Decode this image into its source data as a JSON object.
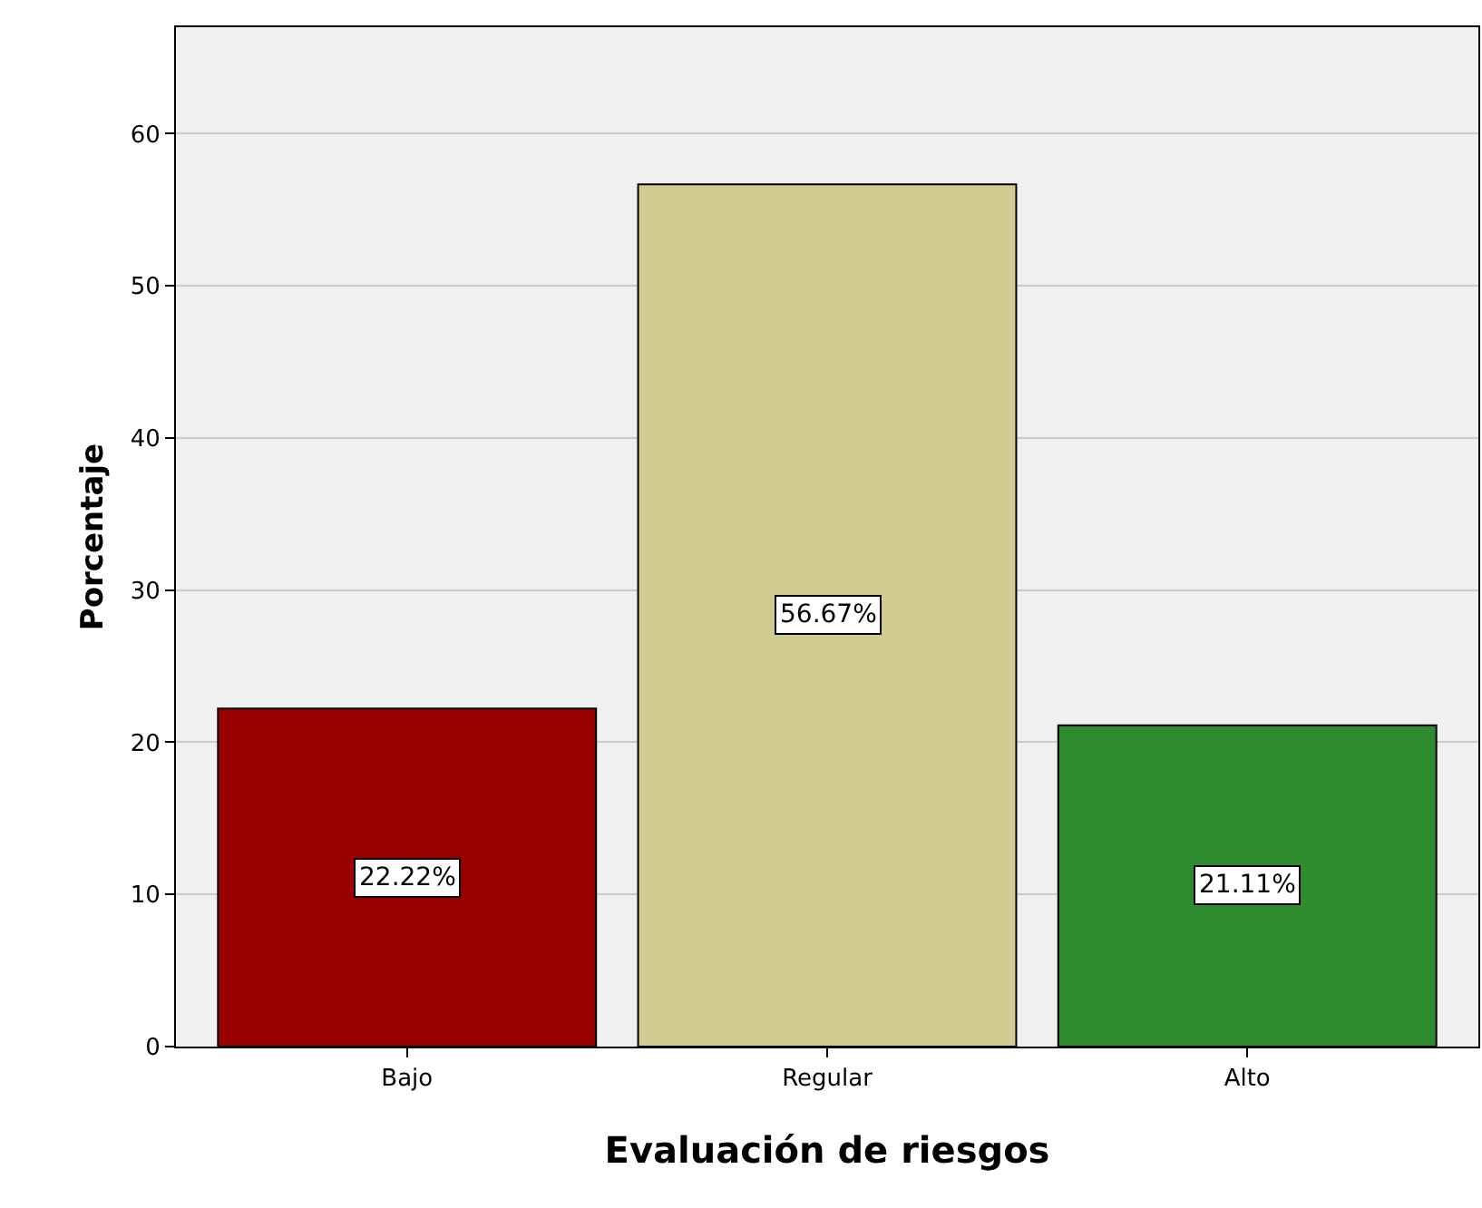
{
  "chart_data": {
    "type": "bar",
    "xlabel": "Evaluación de riesgos",
    "ylabel": "Porcentaje",
    "categories": [
      "Bajo",
      "Regular",
      "Alto"
    ],
    "values": [
      22.22,
      56.67,
      21.11
    ],
    "colors": [
      "#990000",
      "#d0cc8f",
      "#2e8b2e"
    ],
    "value_labels": [
      "22.22%",
      "56.67%",
      "21.11%"
    ],
    "ylim": [
      0,
      67
    ],
    "yticks": [
      0,
      10,
      20,
      30,
      40,
      50,
      60
    ],
    "grid": "y"
  }
}
